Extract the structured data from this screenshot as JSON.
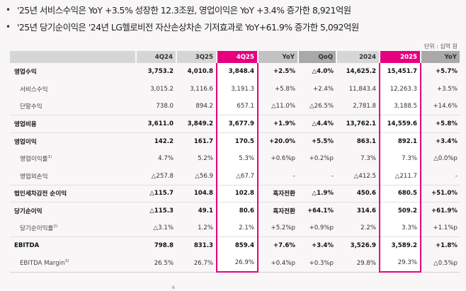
{
  "bullets": [
    {
      "icon": "bullet-dot",
      "text": "'25년 서비스수익은 YoY +3.5% 성장한 12.3조원, 영업이익은 YoY +3.4% 증가한 8,921억원"
    },
    {
      "icon": "bullet-dot",
      "text": "'25년 당기순이익은 '24년 LG헬로비전 자산손상차손 기저효과로 YoY+61.9% 증가한 5,092억원"
    }
  ],
  "unit_label": "단위 : 십억 원",
  "table": {
    "headers": [
      "",
      "4Q24",
      "3Q25",
      "4Q25",
      "YoY",
      "QoQ",
      "2024",
      "2025",
      "YoY"
    ],
    "highlight_color": "#e6007e",
    "rows": [
      {
        "label": "영업수익",
        "footnote": "",
        "bold": true,
        "sub": false,
        "values": [
          "3,753.2",
          "4,010.8",
          "3,848.4",
          "+2.5%",
          "△4.0%",
          "14,625.2",
          "15,451.7",
          "+5.7%"
        ]
      },
      {
        "label": "서비스수익",
        "footnote": "",
        "bold": false,
        "sub": true,
        "values": [
          "3,015.2",
          "3,116.6",
          "3,191.3",
          "+5.8%",
          "+2.4%",
          "11,843.4",
          "12,263.3",
          "+3.5%"
        ]
      },
      {
        "label": "단말수익",
        "footnote": "",
        "bold": false,
        "sub": true,
        "values": [
          "738.0",
          "894.2",
          "657.1",
          "△11.0%",
          "△26.5%",
          "2,781.8",
          "3,188.5",
          "+14.6%"
        ]
      },
      {
        "label": "영업비용",
        "footnote": "",
        "bold": true,
        "sub": false,
        "values": [
          "3,611.0",
          "3,849.2",
          "3,677.9",
          "+1.9%",
          "△4.4%",
          "13,762.1",
          "14,559.6",
          "+5.8%"
        ]
      },
      {
        "label": "영업이익",
        "footnote": "",
        "bold": true,
        "sub": false,
        "values": [
          "142.2",
          "161.7",
          "170.5",
          "+20.0%",
          "+5.5%",
          "863.1",
          "892.1",
          "+3.4%"
        ]
      },
      {
        "label": "영업이익률",
        "footnote": "1)",
        "bold": false,
        "sub": true,
        "values": [
          "4.7%",
          "5.2%",
          "5.3%",
          "+0.6%p",
          "+0.2%p",
          "7.3%",
          "7.3%",
          "△0.0%p"
        ]
      },
      {
        "label": "영업외손익",
        "footnote": "",
        "bold": false,
        "sub": true,
        "values": [
          "△257.8",
          "△56.9",
          "△67.7",
          "-",
          "-",
          "△412.5",
          "△211.7",
          "-"
        ]
      },
      {
        "label": "법인세차감전 순이익",
        "footnote": "",
        "bold": true,
        "sub": false,
        "values": [
          "△115.7",
          "104.8",
          "102.8",
          "흑자전환",
          "△1.9%",
          "450.6",
          "680.5",
          "+51.0%"
        ]
      },
      {
        "label": "당기순이익",
        "footnote": "",
        "bold": true,
        "sub": false,
        "values": [
          "△115.3",
          "49.1",
          "80.6",
          "흑자전환",
          "+64.1%",
          "314.6",
          "509.2",
          "+61.9%"
        ]
      },
      {
        "label": "당기순이익률",
        "footnote": "2)",
        "bold": false,
        "sub": true,
        "values": [
          "△3.1%",
          "1.2%",
          "2.1%",
          "+5.2%p",
          "+0.9%p",
          "2.2%",
          "3.3%",
          "+1.1%p"
        ]
      },
      {
        "label": "EBITDA",
        "footnote": "",
        "bold": true,
        "sub": false,
        "values": [
          "798.8",
          "831.3",
          "859.4",
          "+7.6%",
          "+3.4%",
          "3,526.9",
          "3,589.2",
          "+1.8%"
        ]
      },
      {
        "label": "EBITDA Margin",
        "footnote": "3)",
        "bold": false,
        "sub": true,
        "values": [
          "26.5%",
          "26.7%",
          "26.9%",
          "+0.4%p",
          "+0.3%p",
          "29.8%",
          "29.3%",
          "△0.5%p"
        ]
      }
    ]
  },
  "page_number": "6"
}
